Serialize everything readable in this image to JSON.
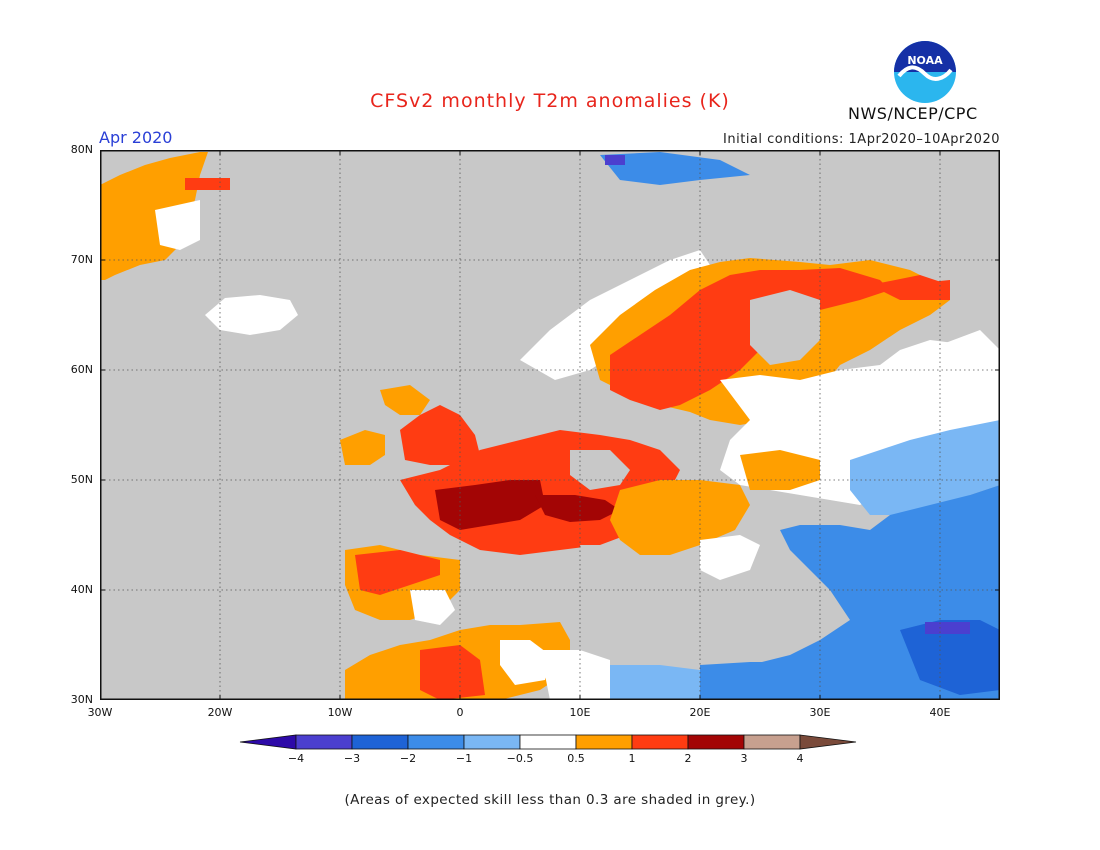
{
  "title": "CFSv2 monthly T2m anomalies (K)",
  "agency": "NWS/NCEP/CPC",
  "logo_text": "NOAA",
  "month": "Apr 2020",
  "initial_conditions": "Initial conditions: 1Apr2020–10Apr2020",
  "footnote": "(Areas of expected skill less than 0.3 are shaded in grey.)",
  "axes": {
    "lat_labels": [
      "80N",
      "70N",
      "60N",
      "50N",
      "40N",
      "30N"
    ],
    "lon_labels": [
      "30W",
      "20W",
      "10W",
      "0",
      "10E",
      "20E",
      "30E",
      "40E"
    ]
  },
  "colorbar": {
    "labels": [
      "−4",
      "−3",
      "−2",
      "−1",
      "−0.5",
      "0.5",
      "1",
      "2",
      "3",
      "4"
    ],
    "colors": [
      "#2d0aa8",
      "#4b3fcf",
      "#1e63d6",
      "#3c8ce8",
      "#7ab7f4",
      "#ffffff",
      "#ff9f00",
      "#ff3c12",
      "#a30505",
      "#c7a08f",
      "#7a4a3a"
    ],
    "skill_color": "#c8c8c8"
  },
  "map": {
    "lat_range": [
      30,
      80
    ],
    "lon_range": [
      -30,
      45
    ],
    "colors": {
      "grey": "#c8c8c8",
      "white": "#ffffff",
      "orange": "#ff9f00",
      "red": "#ff3c12",
      "darkred": "#a30505",
      "lightblue": "#7ab7f4",
      "blue": "#3c8ce8",
      "medblue": "#1e63d6",
      "purple": "#4b3fcf"
    }
  }
}
